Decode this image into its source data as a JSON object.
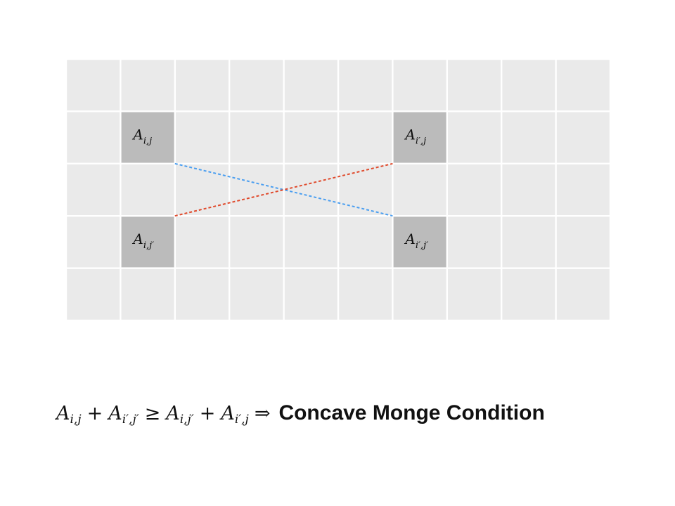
{
  "grid": {
    "rows": 5,
    "cols": 10,
    "cell_color": "#eaeaea",
    "highlight_color": "#bbbbbb",
    "line_color": "#ffffff",
    "highlighted_cells": [
      {
        "row": 1,
        "col": 1,
        "base": "A",
        "sub": "i,j"
      },
      {
        "row": 1,
        "col": 6,
        "base": "A",
        "sub": "i′,j"
      },
      {
        "row": 3,
        "col": 1,
        "base": "A",
        "sub": "i,j′"
      },
      {
        "row": 3,
        "col": 6,
        "base": "A",
        "sub": "i′,j′"
      }
    ]
  },
  "connectors": [
    {
      "name": "blue-dashed-line",
      "from_cell": "A_i,j",
      "to_cell": "A_i′,j′",
      "color": "#4a9ef0"
    },
    {
      "name": "red-dashed-line",
      "from_cell": "A_i,j′",
      "to_cell": "A_i′,j",
      "color": "#e04a2c"
    }
  ],
  "formula": {
    "term1": {
      "base": "A",
      "sub": "i,j"
    },
    "plus1": "+",
    "term2": {
      "base": "A",
      "sub": "i′,j′"
    },
    "geq": "≥",
    "term3": {
      "base": "A",
      "sub": "i,j′"
    },
    "plus2": "+",
    "term4": {
      "base": "A",
      "sub": "i′,j"
    },
    "implies": "⇒",
    "condition": "Concave Monge Condition"
  }
}
